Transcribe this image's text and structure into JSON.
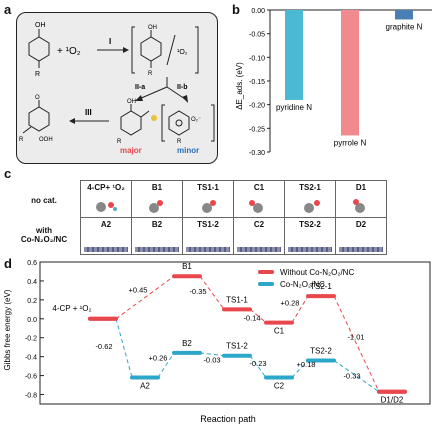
{
  "panels": {
    "a": "a",
    "b": "b",
    "c": "c",
    "d": "d"
  },
  "scheme": {
    "reagent": "+ ¹O₂",
    "step1": "I",
    "step2a": "II-a",
    "step2b": "II-b",
    "step3": "III",
    "major": "major",
    "minor": "minor",
    "o2_bracket": "¹O₂",
    "oh": "OH",
    "r": "R",
    "ooh": "OOH"
  },
  "colors": {
    "red": "#e8474c",
    "blue": "#2aa7c9",
    "pyridine": "#4bb8d4",
    "pyrrole": "#f08a8f",
    "graphite": "#4a7fb5"
  },
  "chart_b": {
    "type": "bar",
    "categories": [
      "pyridine N",
      "pyrrole N",
      "graphite N"
    ],
    "values": [
      -0.19,
      -0.265,
      -0.02
    ],
    "ylabel": "ΔE_ads. (eV)",
    "ylim": [
      -0.3,
      0.0
    ],
    "yticks": [
      "0.00",
      "-0.05",
      "-0.10",
      "-0.15",
      "-0.20",
      "-0.25",
      "-0.30"
    ]
  },
  "table_c": {
    "row_labels": [
      "no cat.",
      "with\nCo-N₂O₂/NC"
    ],
    "row1": [
      "4-CP+ ¹O₂",
      "B1",
      "TS1-1",
      "C1",
      "TS2-1",
      "D1"
    ],
    "row2": [
      "A2",
      "B2",
      "TS1-2",
      "C2",
      "TS2-2",
      "D2"
    ]
  },
  "chart_data": {
    "type": "line",
    "ylabel": "Gibbs free energy (eV)",
    "xlabel": "Reaction path",
    "ylim": [
      -0.9,
      0.6
    ],
    "yticks": [
      "0.6",
      "0.4",
      "0.2",
      "0.0",
      "-0.2",
      "-0.4",
      "-0.6",
      "-0.8"
    ],
    "legend_placement": "top-right",
    "series": [
      {
        "name": "Without Co-N₂O₂/NC",
        "color": "#e8474c",
        "states": [
          "4-CP + ¹O₂",
          "B1",
          "TS1-1",
          "C1",
          "TS2-1",
          "D1/D2"
        ],
        "values": [
          0.0,
          0.45,
          0.1,
          -0.04,
          0.24,
          -0.77
        ]
      },
      {
        "name": "Co-N₂O₂/NC",
        "color": "#2aa7c9",
        "states": [
          "4-CP + ¹O₂",
          "A2",
          "B2",
          "TS1-2",
          "C2",
          "TS2-2",
          "D1/D2"
        ],
        "values": [
          0.0,
          -0.62,
          -0.36,
          -0.39,
          -0.62,
          -0.44,
          -0.77
        ]
      }
    ],
    "state_labels": [
      "4-CP + ¹O₂",
      "B1",
      "TS1-1",
      "C1",
      "TS2-1",
      "A2",
      "B2",
      "TS1-2",
      "C2",
      "TS2-2",
      "D1/D2"
    ],
    "annotations": [
      "+0.45",
      "-0.35",
      "-0.14",
      "+0.28",
      "-1.01",
      "-0.62",
      "+0.26",
      "-0.03",
      "-0.23",
      "+0.18",
      "-0.33"
    ]
  }
}
